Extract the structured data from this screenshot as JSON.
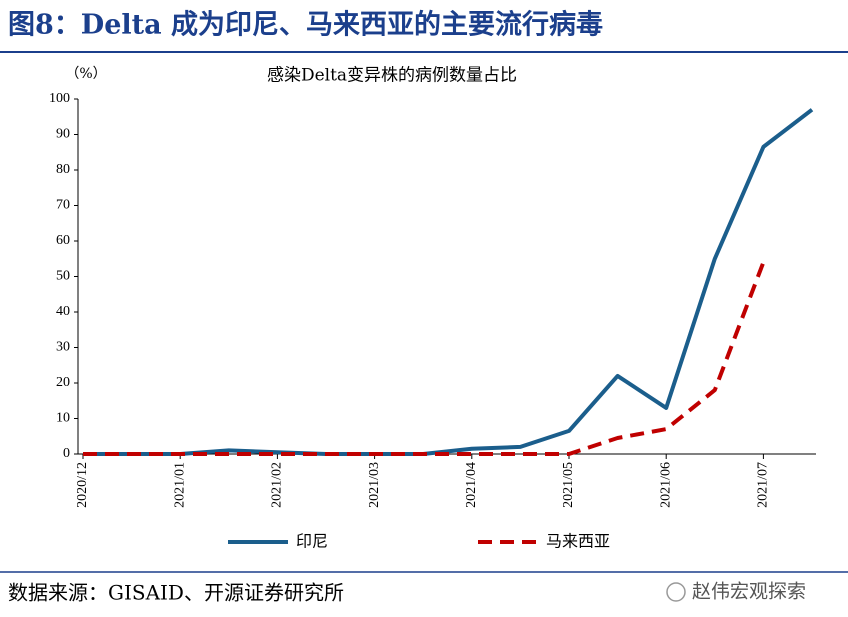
{
  "header": {
    "title": "图8：Delta 成为印尼、马来西亚的主要流行病毒"
  },
  "chart_data": {
    "type": "line",
    "title": "感染Delta变异株的病例数量占比",
    "y_unit": "（%）",
    "categories": [
      "2020/12",
      null,
      "2021/01",
      null,
      "2021/02",
      null,
      "2021/03",
      null,
      "2021/04",
      null,
      "2021/05",
      null,
      "2021/06",
      null,
      "2021/07",
      null
    ],
    "series": [
      {
        "name": "印尼",
        "color": "#1b5e8c",
        "dash": false,
        "values": [
          0,
          0,
          0,
          1,
          0.5,
          0,
          0,
          0,
          1.5,
          2,
          6.5,
          22,
          13,
          55,
          86.5,
          97
        ]
      },
      {
        "name": "马来西亚",
        "color": "#c00000",
        "dash": true,
        "values": [
          0,
          0,
          0,
          0,
          0,
          0,
          0,
          0,
          0,
          0,
          0,
          4.5,
          7,
          18,
          54,
          null
        ]
      }
    ],
    "ylim": [
      0,
      100
    ],
    "yticks": [
      0,
      10,
      20,
      30,
      40,
      50,
      60,
      70,
      80,
      90,
      100
    ],
    "grid": false,
    "legend": "bottom"
  },
  "footer": {
    "source": "数据来源：GISAID、开源证券研究所",
    "watermark": "赵伟宏观探索"
  }
}
